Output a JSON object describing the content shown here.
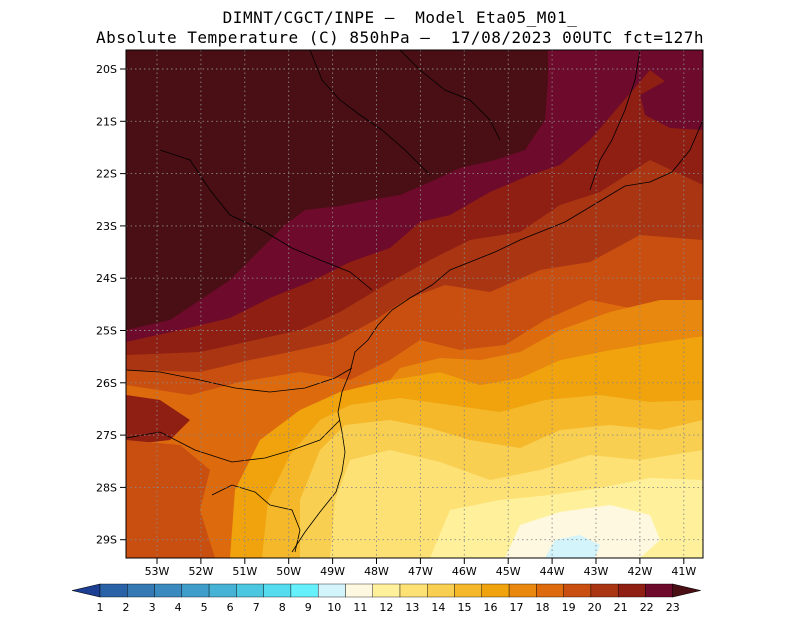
{
  "title_line1": "DIMNT/CGCT/INPE –  Model Eta05_M01_",
  "title_line2": "Absolute Temperature (C) 850hPa –  17/08/2023 00UTC fct=127h",
  "lat_labels": [
    "20S",
    "21S",
    "22S",
    "23S",
    "24S",
    "25S",
    "26S",
    "27S",
    "28S",
    "29S"
  ],
  "lon_labels": [
    "53W",
    "52W",
    "51W",
    "50W",
    "49W",
    "48W",
    "47W",
    "46W",
    "45W",
    "44W",
    "43W",
    "42W",
    "41W"
  ],
  "colorbar": {
    "labels": [
      "1",
      "2",
      "3",
      "4",
      "5",
      "6",
      "7",
      "8",
      "9",
      "10",
      "11",
      "12",
      "13",
      "14",
      "15",
      "16",
      "17",
      "18",
      "19",
      "20",
      "21",
      "22",
      "23"
    ],
    "colors": [
      "#1c3f94",
      "#2a62a8",
      "#3478b4",
      "#3a8ac0",
      "#3f9dca",
      "#45b2d6",
      "#4cc7e2",
      "#55dcef",
      "#66f0fc",
      "#d3f4fb",
      "#fff8e0",
      "#fff19c",
      "#fde175",
      "#f9cf52",
      "#f5b82b",
      "#f0a30c",
      "#e8880f",
      "#dd6a0d",
      "#c94f10",
      "#a93513",
      "#8f1e13",
      "#6e0a2b",
      "#4a0f14"
    ]
  }
}
